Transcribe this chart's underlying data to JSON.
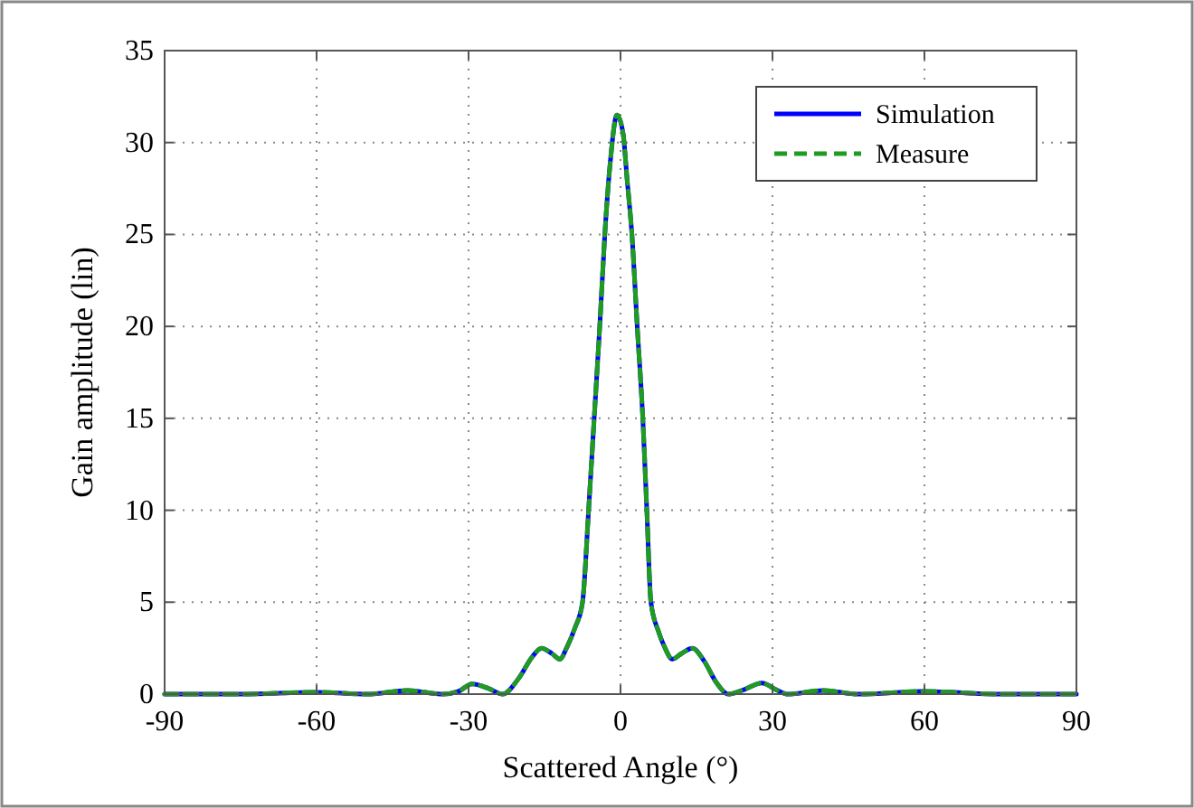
{
  "chart_data": {
    "type": "line",
    "xlabel": "Scattered Angle (°)",
    "ylabel": "Gain amplitude (lin)",
    "x": [
      -90,
      -75,
      -60,
      -50,
      -42,
      -35,
      -32,
      -29.3,
      -26,
      -23.3,
      -20,
      -17.5,
      -15.6,
      -13.5,
      -12,
      -10.5,
      -9,
      -7.5,
      -6.3,
      -5.2,
      -4.1,
      -3.1,
      -2,
      -0.7,
      0.5,
      1.3,
      2.25,
      3.3,
      4.4,
      5.2,
      6,
      7.5,
      8.8,
      10.2,
      12,
      14.2,
      16.5,
      19,
      21.3,
      24,
      27.9,
      31,
      33,
      40,
      47,
      60,
      75,
      90
    ],
    "series": [
      {
        "name": "Simulation",
        "color": "#0000ff",
        "line_style": "solid",
        "values": [
          0,
          0,
          0.1,
          0,
          0.2,
          0,
          0.15,
          0.55,
          0.3,
          0,
          0.9,
          2,
          2.5,
          2.2,
          1.9,
          2.6,
          3.6,
          5,
          10,
          15,
          20,
          25,
          29,
          31.5,
          30.5,
          28,
          25,
          20,
          15,
          10,
          5,
          3.4,
          2.5,
          1.9,
          2.2,
          2.5,
          1.8,
          0.6,
          0,
          0.2,
          0.6,
          0.2,
          0,
          0.2,
          0,
          0.15,
          0,
          0
        ]
      },
      {
        "name": "Measure",
        "color": "#1f9b1f",
        "line_style": "dashed",
        "values": [
          0,
          0,
          0.1,
          0,
          0.2,
          0,
          0.15,
          0.55,
          0.3,
          0,
          0.9,
          2,
          2.5,
          2.2,
          1.9,
          2.6,
          3.6,
          5,
          10,
          15,
          20,
          25,
          29,
          31.5,
          30.5,
          28,
          25,
          20,
          15,
          10,
          5,
          3.4,
          2.5,
          1.9,
          2.2,
          2.5,
          1.8,
          0.6,
          0,
          0.2,
          0.6,
          0.2,
          0,
          0.2,
          0,
          0.15,
          0,
          0
        ]
      }
    ],
    "xlim": [
      -90,
      90
    ],
    "xticks": [
      -90,
      -60,
      -30,
      0,
      30,
      60,
      90
    ],
    "ylim": [
      0,
      35
    ],
    "yticks": [
      0,
      5,
      10,
      15,
      20,
      25,
      30,
      35
    ],
    "grid": true,
    "legend": "top right"
  }
}
